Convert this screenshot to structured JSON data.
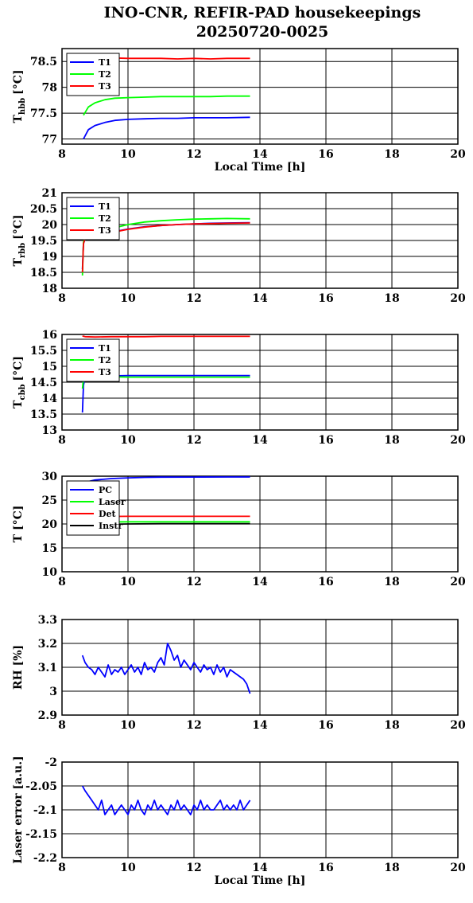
{
  "title": "INO-CNR, REFIR-PAD housekeepings",
  "subtitle": "20250720-0025",
  "x_axis": {
    "label": "Local Time [h]",
    "range": [
      8,
      20
    ],
    "ticks": [
      "8",
      "10",
      "12",
      "14",
      "16",
      "18",
      "20"
    ]
  },
  "colors": {
    "blue": "#0000ff",
    "green": "#00ff00",
    "red": "#ff0000",
    "black": "#000000"
  },
  "chart_data": [
    {
      "type": "line",
      "ylabel_main": "T",
      "ylabel_sub": "hbb",
      "ylabel_unit": "[°C]",
      "xlabel": "Local Time [h]",
      "xlim": [
        8,
        20
      ],
      "ylim": [
        76.9,
        78.75
      ],
      "yticks": [
        "77",
        "77.5",
        "78",
        "78.5"
      ],
      "grid": true,
      "legend_position": "top-left",
      "series": [
        {
          "name": "T1",
          "color": "#0000ff",
          "x": [
            8.65,
            8.8,
            9.0,
            9.3,
            9.6,
            10.0,
            10.5,
            11.0,
            11.5,
            12.0,
            12.5,
            13.0,
            13.7
          ],
          "y": [
            77.0,
            77.18,
            77.26,
            77.32,
            77.36,
            77.38,
            77.39,
            77.4,
            77.4,
            77.41,
            77.41,
            77.41,
            77.42
          ]
        },
        {
          "name": "T2",
          "color": "#00ff00",
          "x": [
            8.65,
            8.8,
            9.0,
            9.3,
            9.6,
            10.0,
            10.5,
            11.0,
            11.5,
            12.0,
            12.5,
            13.0,
            13.7
          ],
          "y": [
            77.46,
            77.62,
            77.7,
            77.76,
            77.79,
            77.8,
            77.81,
            77.82,
            77.82,
            77.82,
            77.82,
            77.83,
            77.83
          ]
        },
        {
          "name": "T3",
          "color": "#ff0000",
          "x": [
            9.0,
            9.5,
            10.0,
            10.5,
            11.0,
            11.5,
            12.0,
            12.5,
            13.0,
            13.7
          ],
          "y": [
            78.58,
            78.57,
            78.56,
            78.56,
            78.56,
            78.55,
            78.56,
            78.55,
            78.56,
            78.56
          ]
        }
      ]
    },
    {
      "type": "line",
      "ylabel_main": "T",
      "ylabel_sub": "rbb",
      "ylabel_unit": "[°C]",
      "xlim": [
        8,
        20
      ],
      "ylim": [
        18,
        21
      ],
      "yticks": [
        "18",
        "18.5",
        "19",
        "19.5",
        "20",
        "20.5",
        "21"
      ],
      "grid": true,
      "legend_position": "top-left",
      "series": [
        {
          "name": "T1",
          "color": "#0000ff",
          "x": [
            8.62,
            8.65,
            8.7,
            9.0,
            9.3,
            9.6,
            10.0,
            10.5,
            11.0,
            11.5,
            12.0,
            12.5,
            13.0,
            13.7
          ],
          "y": [
            18.6,
            19.4,
            19.55,
            19.62,
            19.7,
            19.78,
            19.86,
            19.93,
            19.97,
            20.0,
            20.02,
            20.04,
            20.05,
            20.06
          ]
        },
        {
          "name": "T2",
          "color": "#00ff00",
          "x": [
            8.62,
            8.65,
            8.7,
            9.0,
            9.3,
            9.6,
            10.0,
            10.5,
            11.0,
            11.5,
            12.0,
            12.5,
            13.0,
            13.7
          ],
          "y": [
            18.4,
            19.45,
            19.6,
            19.7,
            19.8,
            19.9,
            20.0,
            20.08,
            20.12,
            20.15,
            20.17,
            20.18,
            20.19,
            20.18
          ]
        },
        {
          "name": "T3",
          "color": "#ff0000",
          "x": [
            8.62,
            8.65,
            8.7,
            9.0,
            9.3,
            9.6,
            10.0,
            10.5,
            11.0,
            11.5,
            12.0,
            12.5,
            13.0,
            13.7
          ],
          "y": [
            18.5,
            19.4,
            19.55,
            19.63,
            19.7,
            19.77,
            19.85,
            19.92,
            19.97,
            20.0,
            20.02,
            20.03,
            20.04,
            20.05
          ]
        }
      ]
    },
    {
      "type": "line",
      "ylabel_main": "T",
      "ylabel_sub": "cbb",
      "ylabel_unit": "[°C]",
      "xlim": [
        8,
        20
      ],
      "ylim": [
        13,
        16
      ],
      "yticks": [
        "13",
        "13.5",
        "14",
        "14.5",
        "15",
        "15.5",
        "16"
      ],
      "grid": true,
      "legend_position": "top-left",
      "series": [
        {
          "name": "T1",
          "color": "#0000ff",
          "x": [
            8.62,
            8.65,
            8.7,
            9.0,
            9.5,
            10.0,
            10.5,
            11.0,
            11.5,
            12.0,
            12.5,
            13.0,
            13.7
          ],
          "y": [
            13.55,
            14.4,
            14.65,
            14.7,
            14.7,
            14.71,
            14.71,
            14.71,
            14.71,
            14.71,
            14.71,
            14.71,
            14.71
          ]
        },
        {
          "name": "T2",
          "color": "#00ff00",
          "x": [
            8.62,
            8.65,
            8.7,
            9.0,
            9.5,
            10.0,
            10.5,
            11.0,
            11.5,
            12.0,
            12.5,
            13.0,
            13.7
          ],
          "y": [
            14.3,
            14.6,
            14.68,
            14.68,
            14.67,
            14.66,
            14.66,
            14.66,
            14.66,
            14.66,
            14.66,
            14.66,
            14.66
          ]
        },
        {
          "name": "T3",
          "color": "#ff0000",
          "x": [
            8.62,
            8.7,
            9.0,
            9.5,
            10.0,
            10.5,
            11.0,
            11.5,
            12.0,
            12.5,
            13.0,
            13.7
          ],
          "y": [
            15.95,
            15.93,
            15.92,
            15.93,
            15.93,
            15.93,
            15.94,
            15.94,
            15.94,
            15.94,
            15.94,
            15.94
          ]
        }
      ]
    },
    {
      "type": "line",
      "ylabel_main": "T [°C]",
      "ylabel_sub": "",
      "ylabel_unit": "",
      "xlim": [
        8,
        20
      ],
      "ylim": [
        10,
        30
      ],
      "yticks": [
        "10",
        "15",
        "20",
        "25",
        "30"
      ],
      "grid": true,
      "legend_position": "top-left",
      "series": [
        {
          "name": "PC",
          "color": "#0000ff",
          "x": [
            8.62,
            9.0,
            9.5,
            10.0,
            10.5,
            11.0,
            12.0,
            13.0,
            13.7
          ],
          "y": [
            28.6,
            29.2,
            29.5,
            29.65,
            29.75,
            29.8,
            29.82,
            29.83,
            29.83
          ]
        },
        {
          "name": "Laser",
          "color": "#00ff00",
          "x": [
            8.62,
            9.0,
            10.0,
            11.0,
            12.0,
            13.0,
            13.7
          ],
          "y": [
            20.3,
            20.4,
            20.45,
            20.45,
            20.45,
            20.45,
            20.45
          ]
        },
        {
          "name": "Det",
          "color": "#ff0000",
          "x": [
            8.62,
            9.0,
            10.0,
            11.0,
            12.0,
            13.0,
            13.7
          ],
          "y": [
            21.5,
            21.55,
            21.6,
            21.6,
            21.6,
            21.6,
            21.6
          ]
        },
        {
          "name": "Instr",
          "color": "#000000",
          "x": [
            8.62,
            9.0,
            10.0,
            11.0,
            12.0,
            13.0,
            13.7
          ],
          "y": [
            19.8,
            19.9,
            20.0,
            20.05,
            20.05,
            20.05,
            20.05
          ]
        }
      ]
    },
    {
      "type": "line",
      "ylabel_main": "RH [%]",
      "ylabel_sub": "",
      "ylabel_unit": "",
      "xlim": [
        8,
        20
      ],
      "ylim": [
        2.9,
        3.3
      ],
      "yticks": [
        "2.9",
        "3",
        "3.1",
        "3.2",
        "3.3"
      ],
      "grid": true,
      "legend_position": "",
      "series": [
        {
          "name": "",
          "color": "#0000ff",
          "x": [
            8.62,
            8.7,
            8.8,
            8.9,
            9.0,
            9.1,
            9.2,
            9.3,
            9.4,
            9.5,
            9.6,
            9.7,
            9.8,
            9.9,
            10.0,
            10.1,
            10.2,
            10.3,
            10.4,
            10.5,
            10.6,
            10.7,
            10.8,
            10.9,
            11.0,
            11.1,
            11.2,
            11.3,
            11.4,
            11.5,
            11.6,
            11.7,
            11.8,
            11.9,
            12.0,
            12.1,
            12.2,
            12.3,
            12.4,
            12.5,
            12.6,
            12.7,
            12.8,
            12.9,
            13.0,
            13.1,
            13.2,
            13.3,
            13.4,
            13.5,
            13.6,
            13.7
          ],
          "y": [
            3.15,
            3.12,
            3.1,
            3.09,
            3.07,
            3.1,
            3.08,
            3.06,
            3.11,
            3.07,
            3.09,
            3.08,
            3.1,
            3.07,
            3.09,
            3.11,
            3.08,
            3.1,
            3.07,
            3.12,
            3.09,
            3.1,
            3.08,
            3.12,
            3.14,
            3.11,
            3.2,
            3.17,
            3.13,
            3.15,
            3.1,
            3.13,
            3.11,
            3.09,
            3.12,
            3.1,
            3.08,
            3.11,
            3.09,
            3.1,
            3.07,
            3.11,
            3.08,
            3.1,
            3.06,
            3.09,
            3.08,
            3.07,
            3.06,
            3.05,
            3.03,
            2.99
          ]
        }
      ]
    },
    {
      "type": "line",
      "ylabel_main": "Laser error [a.u.]",
      "ylabel_sub": "",
      "ylabel_unit": "",
      "xlabel": "Local Time [h]",
      "xlim": [
        8,
        20
      ],
      "ylim": [
        -2.2,
        -2.0
      ],
      "yticks": [
        "-2.2",
        "-2.15",
        "-2.1",
        "-2.05",
        "-2"
      ],
      "grid": true,
      "legend_position": "",
      "series": [
        {
          "name": "",
          "color": "#0000ff",
          "x": [
            8.62,
            8.7,
            8.8,
            8.9,
            9.0,
            9.1,
            9.2,
            9.3,
            9.4,
            9.5,
            9.6,
            9.7,
            9.8,
            9.9,
            10.0,
            10.1,
            10.2,
            10.3,
            10.4,
            10.5,
            10.6,
            10.7,
            10.8,
            10.9,
            11.0,
            11.1,
            11.2,
            11.3,
            11.4,
            11.5,
            11.6,
            11.7,
            11.8,
            11.9,
            12.0,
            12.1,
            12.2,
            12.3,
            12.4,
            12.5,
            12.6,
            12.7,
            12.8,
            12.9,
            13.0,
            13.1,
            13.2,
            13.3,
            13.4,
            13.5,
            13.6,
            13.7
          ],
          "y": [
            -2.05,
            -2.06,
            -2.07,
            -2.08,
            -2.09,
            -2.1,
            -2.08,
            -2.11,
            -2.1,
            -2.09,
            -2.11,
            -2.1,
            -2.09,
            -2.1,
            -2.11,
            -2.09,
            -2.1,
            -2.08,
            -2.1,
            -2.11,
            -2.09,
            -2.1,
            -2.08,
            -2.1,
            -2.09,
            -2.1,
            -2.11,
            -2.09,
            -2.1,
            -2.08,
            -2.1,
            -2.09,
            -2.1,
            -2.11,
            -2.09,
            -2.1,
            -2.08,
            -2.1,
            -2.09,
            -2.1,
            -2.1,
            -2.09,
            -2.08,
            -2.1,
            -2.09,
            -2.1,
            -2.09,
            -2.1,
            -2.08,
            -2.1,
            -2.09,
            -2.08
          ]
        }
      ]
    }
  ]
}
